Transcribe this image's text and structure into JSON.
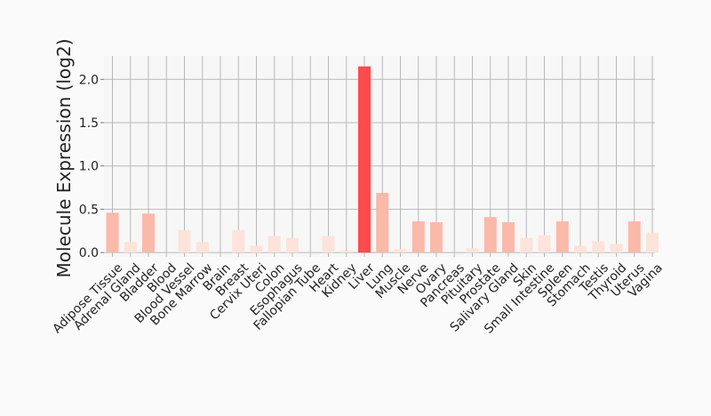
{
  "chart_data": {
    "type": "bar",
    "ylabel": "Molecule Expression (log2)",
    "xlabel": "",
    "ylim": [
      -0.05,
      2.27
    ],
    "yticks": [
      0.0,
      0.5,
      1.0,
      1.5,
      2.0
    ],
    "ytick_labels": [
      "0.0",
      "0.5",
      "1.0",
      "1.5",
      "2.0"
    ],
    "grid": true,
    "categories": [
      "Adipose Tissue",
      "Adrenal Gland",
      "Bladder",
      "Blood",
      "Blood Vessel",
      "Bone Marrow",
      "Brain",
      "Breast",
      "Cervix Uteri",
      "Colon",
      "Esophagus",
      "Fallopian Tube",
      "Heart",
      "Kidney",
      "Liver",
      "Lung",
      "Muscle",
      "Nerve",
      "Ovary",
      "Pancreas",
      "Pituitary",
      "Prostate",
      "Salivary Gland",
      "Skin",
      "Small Intestine",
      "Spleen",
      "Stomach",
      "Testis",
      "Thyroid",
      "Uterus",
      "Vagina"
    ],
    "values": [
      0.46,
      0.12,
      0.45,
      0.0,
      0.26,
      0.12,
      0.0,
      0.26,
      0.08,
      0.19,
      0.17,
      0.0,
      0.19,
      0.02,
      2.15,
      0.69,
      0.04,
      0.36,
      0.35,
      0.0,
      0.05,
      0.41,
      0.35,
      0.17,
      0.2,
      0.36,
      0.08,
      0.13,
      0.1,
      0.36,
      0.23
    ],
    "colors": {
      "low": "#fde3da",
      "mid": "#fbb9aa",
      "high": "#ff4b4b",
      "grid": "#b8b8b8",
      "plot_bg": "#f7f7f7",
      "page_bg": "#fafafa"
    }
  }
}
